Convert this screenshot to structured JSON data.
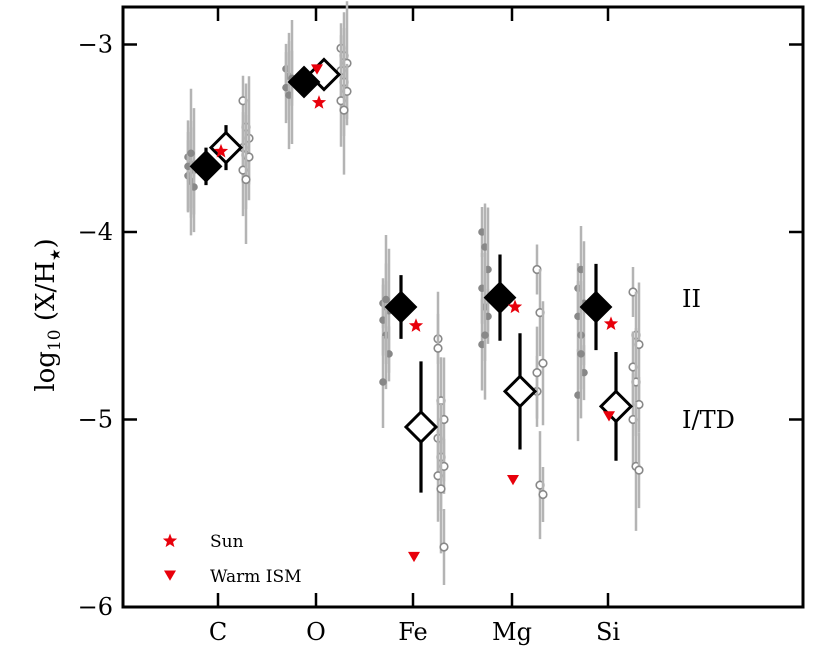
{
  "chart_data": {
    "type": "scatter",
    "title": "",
    "xlabel": "",
    "ylabel": "log10 (X/H★)",
    "ylabel_parts": {
      "base": "log",
      "sub": "10",
      "main": " (X/H",
      "star": "★",
      "close": ")"
    },
    "ylim": [
      -6,
      -2.8
    ],
    "yticks": [
      -6,
      -5,
      -4,
      -3
    ],
    "ytick_labels": [
      "−6",
      "−5",
      "−4",
      "−3"
    ],
    "categories": [
      "C",
      "O",
      "Fe",
      "Mg",
      "Si"
    ],
    "group_labels": {
      "II": "II",
      "I_TD": "I/TD"
    },
    "colors": {
      "sun": "#e8000b",
      "ism": "#e8000b",
      "individual": "#888888",
      "mean": "#000000"
    },
    "series": [
      {
        "name": "II",
        "marker": "filled-diamond",
        "mean": [
          -3.65,
          -3.2,
          -4.4,
          -4.35,
          -4.4
        ],
        "err": [
          0.1,
          0.06,
          0.17,
          0.23,
          0.23
        ]
      },
      {
        "name": "I/TD",
        "marker": "open-diamond",
        "mean": [
          -3.55,
          -3.16,
          -5.04,
          -4.85,
          -4.93
        ],
        "err": [
          0.12,
          0.08,
          0.35,
          0.31,
          0.29
        ]
      },
      {
        "name": "II individual",
        "marker": "filled-dot",
        "values": [
          [
            -3.6,
            -3.64,
            -3.67,
            -3.7,
            -3.73,
            -3.76,
            -3.65,
            -3.58
          ],
          [
            -3.13,
            -3.17,
            -3.2,
            -3.23,
            -3.27,
            -3.18
          ],
          [
            -4.38,
            -4.4,
            -4.42,
            -4.47,
            -4.55,
            -4.65,
            -4.8,
            -4.36
          ],
          [
            -4.0,
            -4.08,
            -4.2,
            -4.3,
            -4.4,
            -4.45,
            -4.6,
            -4.55
          ],
          [
            -4.3,
            -4.2,
            -4.38,
            -4.45,
            -4.55,
            -4.75,
            -4.87,
            -4.65
          ]
        ]
      },
      {
        "name": "I/TD individual",
        "marker": "open-dot",
        "values": [
          [
            -3.3,
            -3.44,
            -3.5,
            -3.55,
            -3.59,
            -3.6,
            -3.67,
            -3.72
          ],
          [
            -3.02,
            -3.06,
            -3.1,
            -3.14,
            -3.2,
            -3.25,
            -3.3,
            -3.35
          ],
          [
            -4.57,
            -4.9,
            -5.0,
            -5.1,
            -5.2,
            -5.25,
            -5.3,
            -5.37,
            -5.68,
            -4.62
          ],
          [
            -4.2,
            -4.43,
            -4.7,
            -4.85,
            -5.35,
            -5.4,
            -4.75
          ],
          [
            -4.32,
            -4.55,
            -4.6,
            -4.72,
            -4.8,
            -4.92,
            -5.0,
            -5.25,
            -5.27
          ]
        ]
      }
    ],
    "references": [
      {
        "name": "Sun",
        "marker": "star",
        "values": [
          -3.57,
          -3.31,
          -4.5,
          -4.4,
          -4.49
        ]
      },
      {
        "name": "Warm ISM",
        "marker": "triangle-down",
        "values": [
          null,
          -3.13,
          -5.73,
          -5.32,
          -4.98
        ]
      }
    ],
    "legend": {
      "position": "bottom-left",
      "entries": [
        "Sun",
        "Warm ISM"
      ]
    }
  }
}
